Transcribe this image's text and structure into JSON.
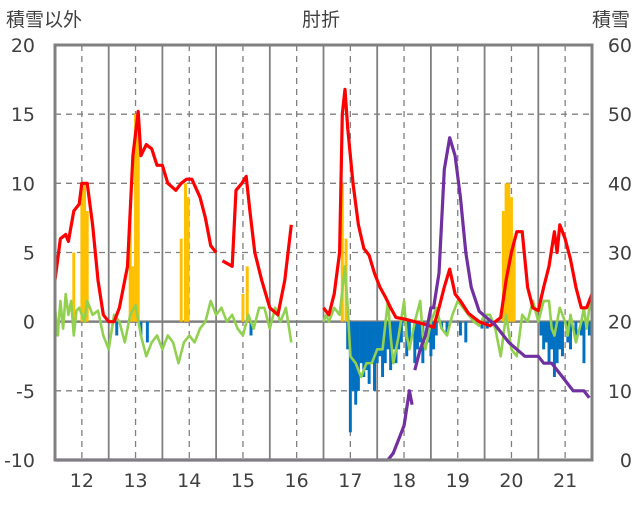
{
  "chart_data": {
    "type": "line",
    "title": "肘折",
    "ylabel_left": "積雪以外",
    "ylabel_right": "積雪",
    "xlim": [
      11.5,
      21.5
    ],
    "ylim_left": [
      -10,
      20
    ],
    "ylim_right": [
      0,
      60
    ],
    "x_ticks": [
      "12",
      "13",
      "14",
      "15",
      "16",
      "17",
      "18",
      "19",
      "20",
      "21"
    ],
    "y_ticks_left": [
      "20",
      "15",
      "10",
      "5",
      "0",
      "-5",
      "-10"
    ],
    "y_ticks_right": [
      "60",
      "50",
      "40",
      "30",
      "20",
      "10",
      "0"
    ],
    "grid": true,
    "colors": {
      "red": "#ff0000",
      "green": "#92d050",
      "purple": "#7030a0",
      "orange": "#ffc000",
      "blue": "#0070c0",
      "frame": "#808080"
    },
    "series": [
      {
        "name": "red",
        "axis": "left",
        "points": [
          [
            11.5,
            3
          ],
          [
            11.6,
            6
          ],
          [
            11.7,
            6.3
          ],
          [
            11.75,
            5.8
          ],
          [
            11.85,
            8
          ],
          [
            11.95,
            8.5
          ],
          [
            12.0,
            10
          ],
          [
            12.1,
            10
          ],
          [
            12.2,
            7
          ],
          [
            12.3,
            3
          ],
          [
            12.4,
            0.5
          ],
          [
            12.5,
            0
          ],
          [
            12.6,
            0
          ],
          [
            12.7,
            1
          ],
          [
            12.85,
            4
          ],
          [
            12.95,
            12
          ],
          [
            13.05,
            15.2
          ],
          [
            13.1,
            12
          ],
          [
            13.2,
            12.8
          ],
          [
            13.3,
            12.5
          ],
          [
            13.4,
            11.3
          ],
          [
            13.5,
            11.3
          ],
          [
            13.6,
            10
          ],
          [
            13.75,
            9.5
          ],
          [
            13.85,
            10
          ],
          [
            13.95,
            10.3
          ],
          [
            14.05,
            10.3
          ],
          [
            14.2,
            9
          ],
          [
            14.3,
            7.5
          ],
          [
            14.4,
            5.5
          ],
          [
            14.5,
            5
          ],
          null,
          [
            14.62,
            4.4
          ],
          [
            14.8,
            4
          ],
          [
            14.87,
            9.5
          ],
          [
            14.98,
            10
          ],
          [
            15.06,
            10.5
          ],
          [
            15.13,
            8
          ],
          [
            15.22,
            5
          ],
          [
            15.35,
            3
          ],
          [
            15.5,
            1
          ],
          [
            15.65,
            0.5
          ],
          [
            15.78,
            3
          ],
          [
            15.9,
            7
          ],
          null,
          [
            16.5,
            1
          ],
          [
            16.6,
            0.5
          ],
          [
            16.7,
            2
          ],
          [
            16.8,
            5
          ],
          [
            16.85,
            15
          ],
          [
            16.9,
            16.8
          ],
          [
            16.95,
            14
          ],
          [
            17.05,
            10
          ],
          [
            17.15,
            7
          ],
          [
            17.25,
            5.3
          ],
          [
            17.35,
            4.8
          ],
          [
            17.45,
            3.5
          ],
          [
            17.55,
            2.5
          ],
          [
            17.65,
            1.8
          ],
          [
            17.75,
            1
          ],
          [
            17.85,
            0.3
          ],
          [
            18.0,
            0.2
          ],
          [
            18.2,
            0
          ],
          [
            18.4,
            -0.2
          ],
          [
            18.55,
            -0.4
          ],
          [
            18.65,
            1
          ],
          [
            18.75,
            2.5
          ],
          [
            18.85,
            3.8
          ],
          [
            18.95,
            2
          ],
          [
            19.05,
            1.5
          ],
          [
            19.2,
            0.6
          ],
          [
            19.4,
            0
          ],
          [
            19.6,
            -0.3
          ],
          [
            19.8,
            0.3
          ],
          [
            19.9,
            3
          ],
          [
            20.0,
            5
          ],
          [
            20.1,
            6.5
          ],
          [
            20.2,
            6.5
          ],
          [
            20.3,
            2.5
          ],
          [
            20.4,
            1
          ],
          [
            20.5,
            0.8
          ],
          [
            20.6,
            2.5
          ],
          [
            20.7,
            4
          ],
          [
            20.8,
            6.5
          ],
          [
            20.85,
            5
          ],
          [
            20.9,
            7
          ],
          [
            21.0,
            6
          ],
          [
            21.1,
            4.5
          ],
          [
            21.2,
            2.5
          ],
          [
            21.3,
            1
          ],
          [
            21.4,
            1
          ],
          [
            21.5,
            2
          ]
        ]
      },
      {
        "name": "green",
        "axis": "left",
        "points": [
          [
            11.5,
            1
          ],
          [
            11.55,
            -1
          ],
          [
            11.6,
            1.5
          ],
          [
            11.65,
            -0.5
          ],
          [
            11.7,
            2
          ],
          [
            11.75,
            0.5
          ],
          [
            11.8,
            1.5
          ],
          [
            11.85,
            -1
          ],
          [
            11.9,
            0.8
          ],
          [
            11.95,
            1
          ],
          [
            12.05,
            0
          ],
          [
            12.1,
            1.5
          ],
          [
            12.2,
            0.5
          ],
          [
            12.3,
            0.8
          ],
          [
            12.4,
            -1
          ],
          [
            12.5,
            -2
          ],
          [
            12.6,
            0.5
          ],
          [
            12.7,
            0
          ],
          [
            12.8,
            -1.5
          ],
          [
            12.9,
            0.5
          ],
          [
            13.0,
            1.2
          ],
          [
            13.1,
            -1
          ],
          [
            13.2,
            -2.5
          ],
          [
            13.3,
            -1.5
          ],
          [
            13.4,
            -1
          ],
          [
            13.5,
            -2
          ],
          [
            13.6,
            -1
          ],
          [
            13.7,
            -1.5
          ],
          [
            13.8,
            -3
          ],
          [
            13.9,
            -1.5
          ],
          [
            14.0,
            -1
          ],
          [
            14.1,
            -1.5
          ],
          [
            14.2,
            -0.5
          ],
          [
            14.3,
            0
          ],
          [
            14.4,
            1.5
          ],
          [
            14.5,
            0.5
          ],
          [
            14.6,
            1
          ],
          [
            14.7,
            0
          ],
          [
            14.8,
            0.5
          ],
          [
            14.9,
            -0.5
          ],
          [
            15.0,
            -1
          ],
          [
            15.1,
            0.5
          ],
          [
            15.2,
            -0.5
          ],
          [
            15.3,
            1
          ],
          [
            15.4,
            1
          ],
          [
            15.5,
            -0.5
          ],
          [
            15.6,
            1
          ],
          [
            15.7,
            0
          ],
          [
            15.8,
            1
          ],
          [
            15.9,
            -1.5
          ],
          null,
          [
            16.5,
            0
          ],
          [
            16.55,
            0.5
          ],
          [
            16.6,
            0
          ],
          [
            16.7,
            1
          ],
          [
            16.8,
            0.5
          ],
          [
            16.9,
            4
          ],
          [
            16.95,
            1
          ],
          [
            17.0,
            -2.5
          ],
          [
            17.1,
            -3
          ],
          [
            17.2,
            -4
          ],
          [
            17.3,
            -3
          ],
          [
            17.4,
            -3
          ],
          [
            17.5,
            -2
          ],
          [
            17.6,
            -2
          ],
          [
            17.7,
            1.5
          ],
          [
            17.75,
            -1
          ],
          [
            17.8,
            -3
          ],
          [
            17.9,
            -1
          ],
          [
            18.0,
            1.5
          ],
          [
            18.05,
            -1
          ],
          [
            18.1,
            -2
          ],
          [
            18.2,
            0
          ],
          [
            18.3,
            1.5
          ],
          [
            18.35,
            -1
          ],
          [
            18.4,
            -2
          ],
          [
            18.5,
            0
          ],
          [
            18.6,
            1
          ],
          [
            18.7,
            -0.5
          ],
          [
            18.8,
            -1
          ],
          [
            18.9,
            0.5
          ],
          [
            19.0,
            1.5
          ],
          [
            19.1,
            1
          ],
          [
            19.2,
            0.5
          ],
          [
            19.3,
            0
          ],
          [
            19.4,
            -0.3
          ],
          [
            19.5,
            0.5
          ],
          [
            19.6,
            0.5
          ],
          [
            19.7,
            -0.5
          ],
          [
            19.8,
            -2.5
          ],
          [
            19.9,
            0.5
          ],
          [
            20.0,
            -2
          ],
          [
            20.1,
            -2.5
          ],
          [
            20.2,
            0.5
          ],
          [
            20.3,
            0
          ],
          [
            20.4,
            1.5
          ],
          [
            20.5,
            0
          ],
          [
            20.6,
            1.5
          ],
          [
            20.7,
            1.5
          ],
          [
            20.75,
            -0.5
          ],
          [
            20.8,
            -1
          ],
          [
            20.9,
            1
          ],
          [
            21.0,
            0
          ],
          [
            21.05,
            -1
          ],
          [
            21.1,
            0.5
          ],
          [
            21.2,
            -1.5
          ],
          [
            21.3,
            0
          ],
          [
            21.35,
            1
          ],
          [
            21.4,
            -0.5
          ],
          [
            21.45,
            1
          ],
          [
            21.5,
            1.5
          ]
        ]
      },
      {
        "name": "purple",
        "axis": "right",
        "points": [
          [
            11.5,
            0
          ],
          [
            17.7,
            0
          ],
          [
            17.8,
            1
          ],
          [
            17.9,
            3
          ],
          [
            18.0,
            5
          ],
          [
            18.1,
            10
          ],
          [
            18.15,
            8
          ],
          null,
          [
            18.2,
            13
          ],
          [
            18.3,
            16
          ],
          [
            18.4,
            18
          ],
          [
            18.5,
            22
          ],
          [
            18.55,
            22
          ],
          [
            18.65,
            27
          ],
          [
            18.75,
            42
          ],
          [
            18.85,
            46.6
          ],
          [
            18.95,
            44
          ],
          [
            19.05,
            38
          ],
          [
            19.15,
            30
          ],
          [
            19.25,
            25
          ],
          [
            19.4,
            21.5
          ],
          [
            19.55,
            20.5
          ],
          [
            19.7,
            19.5
          ],
          [
            19.8,
            18.5
          ],
          [
            19.95,
            17
          ],
          [
            20.1,
            16
          ],
          [
            20.25,
            15
          ],
          [
            20.5,
            15
          ],
          [
            20.6,
            14
          ],
          [
            20.75,
            14
          ],
          [
            20.85,
            13
          ],
          [
            20.95,
            12
          ],
          [
            21.05,
            11
          ],
          [
            21.15,
            10
          ],
          [
            21.35,
            10
          ],
          [
            21.45,
            9
          ]
        ]
      }
    ],
    "bars": [
      {
        "name": "orange",
        "axis": "left",
        "points": [
          [
            11.85,
            5
          ],
          [
            12.0,
            10
          ],
          [
            12.05,
            10
          ],
          [
            12.1,
            8
          ],
          [
            12.9,
            8
          ],
          [
            12.95,
            4
          ],
          [
            13.0,
            15
          ],
          [
            13.05,
            14
          ],
          [
            13.85,
            6
          ],
          [
            13.93,
            10
          ],
          [
            13.98,
            9
          ],
          [
            15.0,
            2
          ],
          [
            15.08,
            4
          ],
          [
            16.85,
            10
          ],
          [
            16.92,
            6
          ],
          [
            19.85,
            8
          ],
          [
            19.9,
            10
          ],
          [
            19.95,
            10
          ],
          [
            20.0,
            9
          ],
          [
            20.05,
            6
          ]
        ]
      },
      {
        "name": "blue",
        "axis": "left",
        "points": [
          [
            11.55,
            -1
          ],
          [
            12.65,
            -1
          ],
          [
            13.1,
            -1
          ],
          [
            13.22,
            -1.5
          ],
          [
            15.15,
            -1
          ],
          [
            16.95,
            -2
          ],
          [
            17.0,
            -8
          ],
          [
            17.05,
            -5
          ],
          [
            17.1,
            -6
          ],
          [
            17.15,
            -5
          ],
          [
            17.2,
            -3
          ],
          [
            17.25,
            -4
          ],
          [
            17.3,
            -3.5
          ],
          [
            17.35,
            -4.5
          ],
          [
            17.4,
            -3
          ],
          [
            17.45,
            -5
          ],
          [
            17.5,
            -3
          ],
          [
            17.55,
            -2.5
          ],
          [
            17.6,
            -4
          ],
          [
            17.65,
            -3
          ],
          [
            17.7,
            -2
          ],
          [
            17.75,
            -3.5
          ],
          [
            17.8,
            -2
          ],
          [
            17.85,
            -3
          ],
          [
            17.9,
            -2
          ],
          [
            17.95,
            -1.5
          ],
          [
            18.05,
            -2.5
          ],
          [
            18.1,
            -1.5
          ],
          [
            18.2,
            -3
          ],
          [
            18.25,
            -2
          ],
          [
            18.3,
            -1.5
          ],
          [
            18.35,
            -3
          ],
          [
            18.45,
            -1.5
          ],
          [
            18.5,
            -2.5
          ],
          [
            18.55,
            -2
          ],
          [
            18.6,
            -1
          ],
          [
            18.7,
            -0.5
          ],
          [
            18.8,
            -1
          ],
          [
            19.05,
            -1
          ],
          [
            19.15,
            -1.5
          ],
          [
            19.45,
            -0.5
          ],
          [
            19.55,
            -0.5
          ],
          [
            20.55,
            -1
          ],
          [
            20.6,
            -2
          ],
          [
            20.65,
            -1.5
          ],
          [
            20.7,
            -3
          ],
          [
            20.75,
            -2
          ],
          [
            20.8,
            -4
          ],
          [
            20.85,
            -3
          ],
          [
            20.9,
            -2
          ],
          [
            20.95,
            -2.5
          ],
          [
            21.05,
            -1.5
          ],
          [
            21.1,
            -2
          ],
          [
            21.2,
            -1
          ],
          [
            21.3,
            -1
          ],
          [
            21.35,
            -3
          ],
          [
            21.45,
            -1
          ]
        ]
      }
    ]
  }
}
